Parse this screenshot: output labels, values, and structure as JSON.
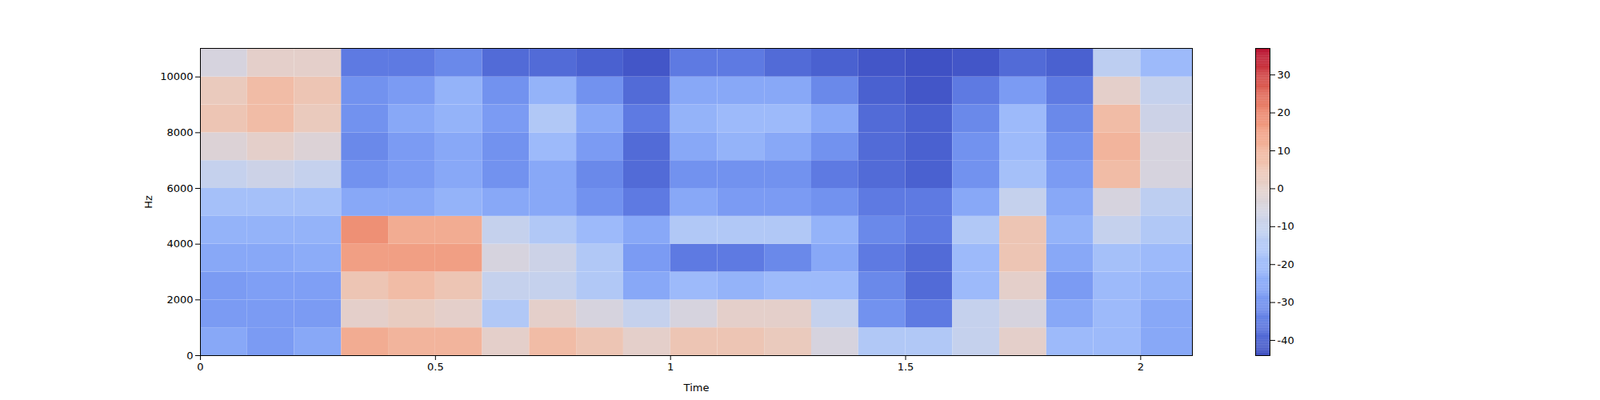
{
  "chart_data": {
    "type": "spectrogram",
    "x_label": "Time",
    "y_label": "Hz",
    "xlim": [
      0,
      2.11
    ],
    "ylim": [
      0,
      11025
    ],
    "xticks": [
      0,
      0.5,
      1,
      1.5,
      2
    ],
    "yticks": [
      0,
      2000,
      4000,
      6000,
      8000,
      10000
    ],
    "x_edges": [
      0,
      0.1,
      0.2,
      0.3,
      0.4,
      0.5,
      0.6,
      0.7,
      0.8,
      0.9,
      1.0,
      1.1,
      1.2,
      1.3,
      1.4,
      1.5,
      1.6,
      1.7,
      1.8,
      1.9,
      2.0,
      2.11
    ],
    "y_edges": [
      0,
      1000,
      2000,
      3000,
      4000,
      5000,
      6000,
      7000,
      8000,
      9000,
      10000,
      11025
    ],
    "values": [
      [
        -25,
        -28,
        -28,
        -25,
        -22,
        -18,
        -10,
        -3,
        5,
        3,
        -5
      ],
      [
        -28,
        -28,
        -27,
        -25,
        -22,
        -18,
        -8,
        0,
        8,
        8,
        0
      ],
      [
        -25,
        -28,
        -27,
        -24,
        -22,
        -18,
        -10,
        -3,
        3,
        5,
        0
      ],
      [
        12,
        0,
        5,
        15,
        18,
        -25,
        -30,
        -32,
        -30,
        -30,
        -35
      ],
      [
        10,
        2,
        8,
        15,
        12,
        -25,
        -28,
        -28,
        -25,
        -28,
        -35
      ],
      [
        10,
        0,
        5,
        15,
        12,
        -22,
        -25,
        -25,
        -22,
        -22,
        -32
      ],
      [
        0,
        -15,
        -10,
        -5,
        -10,
        -25,
        -30,
        -30,
        -28,
        -30,
        -38
      ],
      [
        8,
        0,
        -10,
        -8,
        -15,
        -25,
        -25,
        -20,
        -15,
        -22,
        -38
      ],
      [
        5,
        -5,
        -15,
        -15,
        -20,
        -30,
        -32,
        -28,
        -25,
        -30,
        -40
      ],
      [
        0,
        -10,
        -25,
        -28,
        -25,
        -35,
        -38,
        -38,
        -35,
        -38,
        -42
      ],
      [
        5,
        -5,
        -20,
        -35,
        -15,
        -25,
        -30,
        -25,
        -22,
        -25,
        -35
      ],
      [
        5,
        0,
        -22,
        -35,
        -15,
        -28,
        -30,
        -22,
        -20,
        -25,
        -35
      ],
      [
        3,
        0,
        -20,
        -32,
        -15,
        -28,
        -30,
        -25,
        -20,
        -25,
        -38
      ],
      [
        -5,
        -10,
        -20,
        -25,
        -22,
        -30,
        -35,
        -30,
        -25,
        -32,
        -40
      ],
      [
        -15,
        -30,
        -32,
        -35,
        -32,
        -35,
        -38,
        -38,
        -38,
        -40,
        -42
      ],
      [
        -15,
        -35,
        -38,
        -38,
        -35,
        -35,
        -40,
        -40,
        -40,
        -42,
        -43
      ],
      [
        -10,
        -10,
        -20,
        -20,
        -15,
        -25,
        -30,
        -30,
        -32,
        -35,
        -42
      ],
      [
        0,
        -5,
        0,
        5,
        5,
        -10,
        -18,
        -20,
        -20,
        -28,
        -38
      ],
      [
        -20,
        -25,
        -28,
        -25,
        -22,
        -25,
        -28,
        -30,
        -32,
        -35,
        -40
      ],
      [
        -20,
        -20,
        -20,
        -18,
        -10,
        -5,
        8,
        10,
        8,
        0,
        -12
      ],
      [
        -25,
        -25,
        -22,
        -20,
        -15,
        -12,
        -5,
        -5,
        -8,
        -10,
        -20
      ]
    ],
    "colorbar": {
      "range": [
        -44,
        37
      ],
      "ticks": [
        -40,
        -30,
        -20,
        -10,
        0,
        10,
        20,
        30
      ]
    }
  }
}
